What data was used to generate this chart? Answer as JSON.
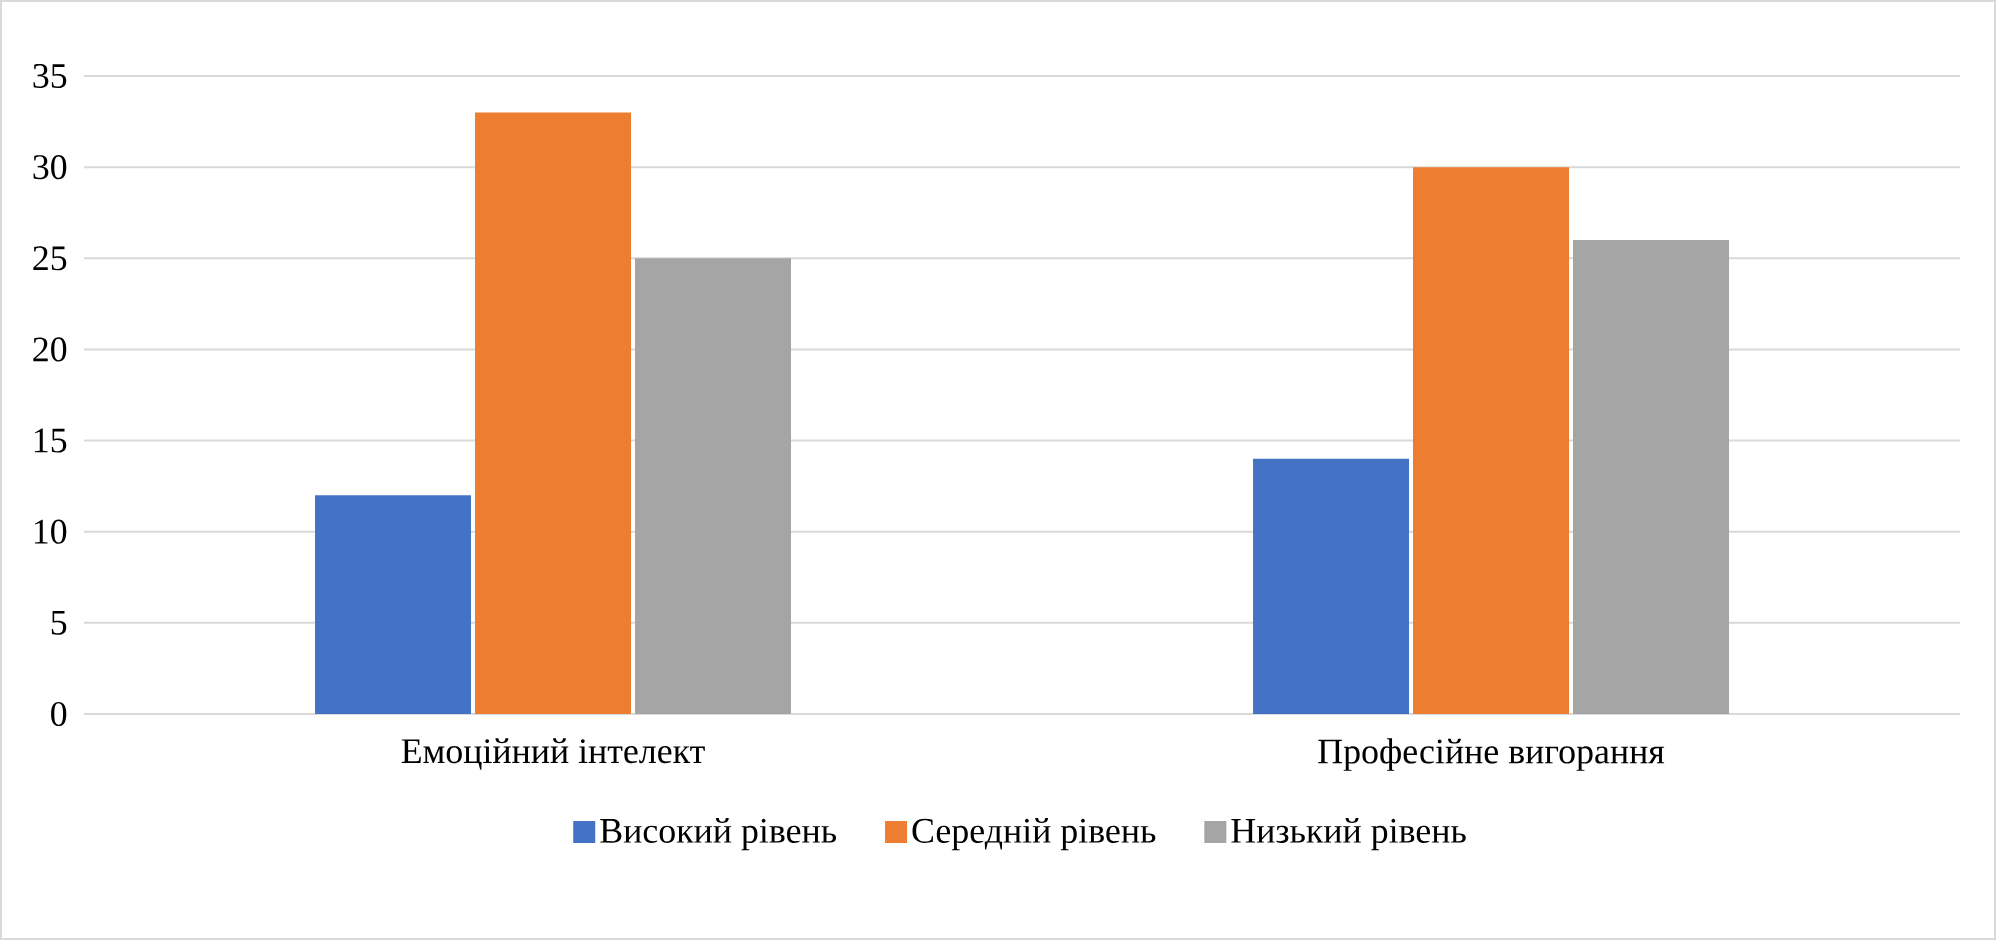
{
  "chart_data": {
    "type": "bar",
    "categories": [
      "Емоційний інтелект",
      "Професійне вигорання"
    ],
    "series": [
      {
        "name": "Високий рівень",
        "color": "#4472c4",
        "values": [
          12,
          14
        ]
      },
      {
        "name": "Середній рівень",
        "color": "#ed7d31",
        "values": [
          33,
          30
        ]
      },
      {
        "name": "Низький рівень",
        "color": "#a5a5a5",
        "values": [
          25,
          26
        ]
      }
    ],
    "ylim": [
      0,
      35
    ],
    "yticks": [
      0,
      5,
      10,
      15,
      20,
      25,
      30,
      35
    ],
    "grid": "y",
    "legend": "bottom"
  }
}
